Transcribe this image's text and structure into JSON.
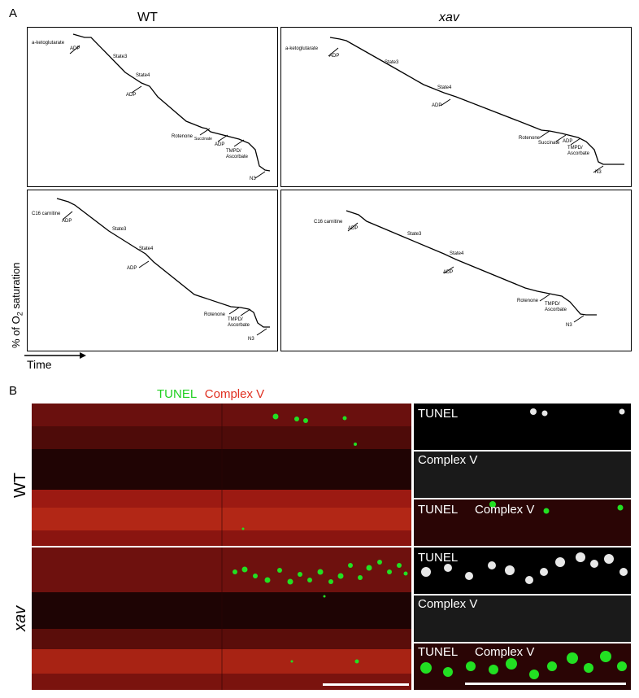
{
  "panel_a": {
    "letter": "A",
    "columns": [
      {
        "title": "WT",
        "italic": false
      },
      {
        "title": "xav",
        "italic": true
      }
    ],
    "ylabel_main": "% of O",
    "ylabel_sub": "2",
    "ylabel_rest": " saturation",
    "xlabel": "Time",
    "traces": {
      "wt_top": {
        "labels": [
          "a-ketoglutarate",
          "ADP",
          "State3",
          "State4",
          "ADP",
          "Rotenone",
          "Succinate",
          "ADP",
          "TMPD/",
          "Ascorbate",
          "N3"
        ]
      },
      "xav_top": {
        "labels": [
          "a-ketoglutarate",
          "ADP",
          "State3",
          "State4",
          "ADP",
          "Rotenone",
          "Succinate",
          "ADP",
          "TMPD/",
          "Ascorbate",
          "N3"
        ]
      },
      "wt_bottom": {
        "labels": [
          "C16 carnitine",
          "ADP",
          "State3",
          "State4",
          "ADP",
          "Rotenone",
          "TMPD/",
          "Ascorbate",
          "N3"
        ]
      },
      "xav_bottom": {
        "labels": [
          "C16 carnitine",
          "ADP",
          "State3",
          "State4",
          "ADP",
          "Rotenone",
          "TMPD/",
          "Ascorbate",
          "N3"
        ]
      }
    }
  },
  "panel_b": {
    "letter": "B",
    "legend_tunel": "TUNEL",
    "legend_complex": "Complex V",
    "row_wt": "WT",
    "row_xav": "xav",
    "inset_tunel": "TUNEL",
    "inset_complex": "Complex V",
    "colors": {
      "tunel": "#20d020",
      "complex": "#e03020"
    }
  }
}
